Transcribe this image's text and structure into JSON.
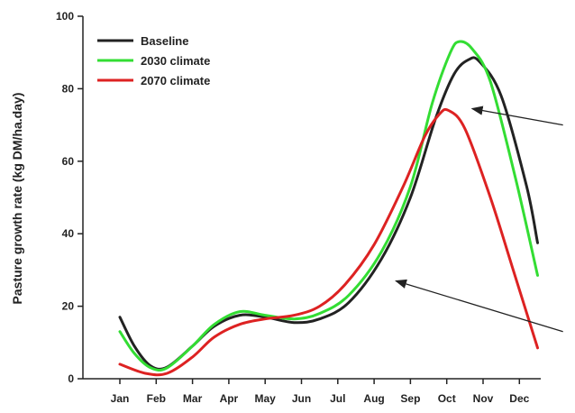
{
  "chart_data": {
    "type": "line",
    "ylabel": "Pasture growth rate (kg DM/ha.day)",
    "xlabel": "",
    "categories": [
      "Jan",
      "Feb",
      "Mar",
      "Apr",
      "May",
      "Jun",
      "Jul",
      "Aug",
      "Sep",
      "Oct",
      "Nov",
      "Dec"
    ],
    "ylim": [
      0,
      100
    ],
    "yticks": [
      0,
      20,
      40,
      60,
      80,
      100
    ],
    "grid": false,
    "legend_position": "top-left",
    "series": [
      {
        "name": "Baseline",
        "color": "#222222",
        "points": [
          [
            0,
            17
          ],
          [
            0.4,
            9
          ],
          [
            0.85,
            3.5
          ],
          [
            1.3,
            3.2
          ],
          [
            2,
            9
          ],
          [
            2.6,
            14.5
          ],
          [
            3.3,
            17.5
          ],
          [
            4,
            17
          ],
          [
            4.8,
            15.5
          ],
          [
            5.5,
            16.5
          ],
          [
            6.3,
            21
          ],
          [
            7.2,
            33
          ],
          [
            8,
            50
          ],
          [
            8.7,
            72
          ],
          [
            9.2,
            84
          ],
          [
            9.6,
            88
          ],
          [
            9.9,
            87.5
          ],
          [
            10.5,
            78
          ],
          [
            11.2,
            53
          ],
          [
            11.5,
            37.5
          ]
        ]
      },
      {
        "name": "2030 climate",
        "color": "#33dd33",
        "points": [
          [
            0,
            13
          ],
          [
            0.4,
            7
          ],
          [
            0.85,
            3
          ],
          [
            1.3,
            3
          ],
          [
            2,
            9
          ],
          [
            2.6,
            15
          ],
          [
            3.3,
            18.5
          ],
          [
            4,
            17.5
          ],
          [
            4.8,
            16.5
          ],
          [
            5.5,
            18
          ],
          [
            6.3,
            23
          ],
          [
            7.2,
            35
          ],
          [
            8,
            53
          ],
          [
            8.6,
            76
          ],
          [
            9.1,
            90
          ],
          [
            9.35,
            93
          ],
          [
            9.7,
            91
          ],
          [
            10.2,
            82
          ],
          [
            10.9,
            55
          ],
          [
            11.5,
            28.5
          ]
        ]
      },
      {
        "name": "2070 climate",
        "color": "#dd2222",
        "points": [
          [
            0,
            4
          ],
          [
            0.7,
            1.5
          ],
          [
            1.3,
            1.5
          ],
          [
            2,
            6
          ],
          [
            2.6,
            11.5
          ],
          [
            3.3,
            15
          ],
          [
            4,
            16.5
          ],
          [
            4.8,
            17.5
          ],
          [
            5.5,
            20
          ],
          [
            6.2,
            26
          ],
          [
            7,
            37
          ],
          [
            7.8,
            53
          ],
          [
            8.4,
            67
          ],
          [
            8.8,
            73
          ],
          [
            9.05,
            74
          ],
          [
            9.5,
            69
          ],
          [
            10.2,
            50
          ],
          [
            10.8,
            31
          ],
          [
            11.5,
            8.5
          ]
        ]
      }
    ],
    "annotations": [
      {
        "type": "arrow",
        "from": [
          12.2,
          70
        ],
        "to": [
          9.7,
          74.5
        ]
      },
      {
        "type": "arrow",
        "from": [
          12.2,
          13
        ],
        "to": [
          7.6,
          27
        ]
      }
    ]
  }
}
